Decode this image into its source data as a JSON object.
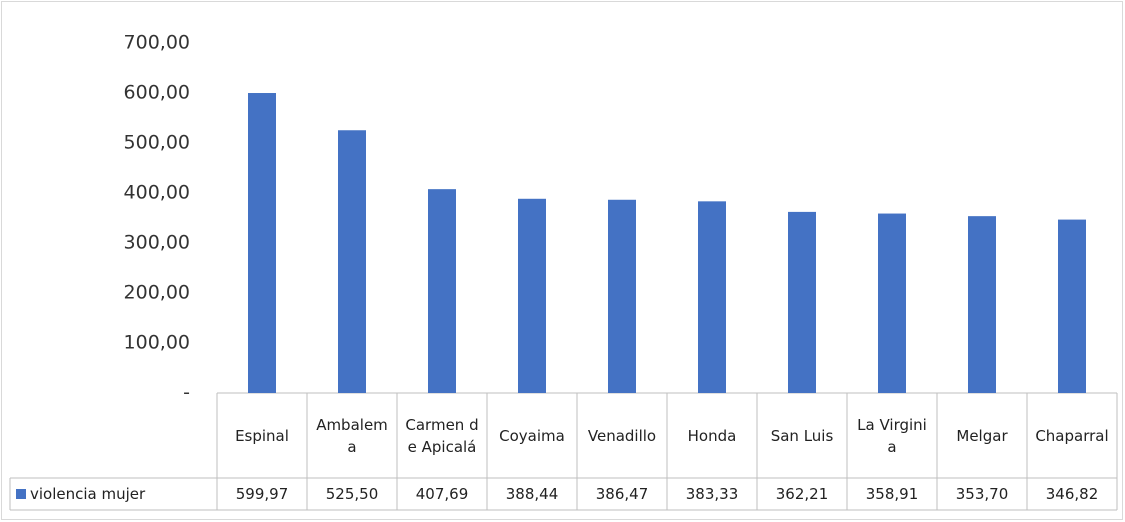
{
  "chart_data": {
    "type": "bar",
    "categories": [
      "Espinal",
      "Ambalema",
      "Carmen de Apicalá",
      "Coyaima",
      "Venadillo",
      "Honda",
      "San Luis",
      "La Virginia",
      "Melgar",
      "Chaparral"
    ],
    "series": [
      {
        "name": "violencia mujer",
        "color": "#4472c4",
        "values": [
          599.97,
          525.5,
          407.69,
          388.44,
          386.47,
          383.33,
          362.21,
          358.91,
          353.7,
          346.82
        ],
        "value_labels": [
          "599,97",
          "525,50",
          "407,69",
          "388,44",
          "386,47",
          "383,33",
          "362,21",
          "358,91",
          "353,70",
          "346,82"
        ]
      }
    ],
    "ylim": [
      0,
      700
    ],
    "yticks": [
      {
        "value": 0,
        "label": "-"
      },
      {
        "value": 100,
        "label": "100,00"
      },
      {
        "value": 200,
        "label": "200,00"
      },
      {
        "value": 300,
        "label": "300,00"
      },
      {
        "value": 400,
        "label": "400,00"
      },
      {
        "value": 500,
        "label": "500,00"
      },
      {
        "value": 600,
        "label": "600,00"
      },
      {
        "value": 700,
        "label": "700,00"
      }
    ],
    "grid": false,
    "legend": "data-table"
  }
}
